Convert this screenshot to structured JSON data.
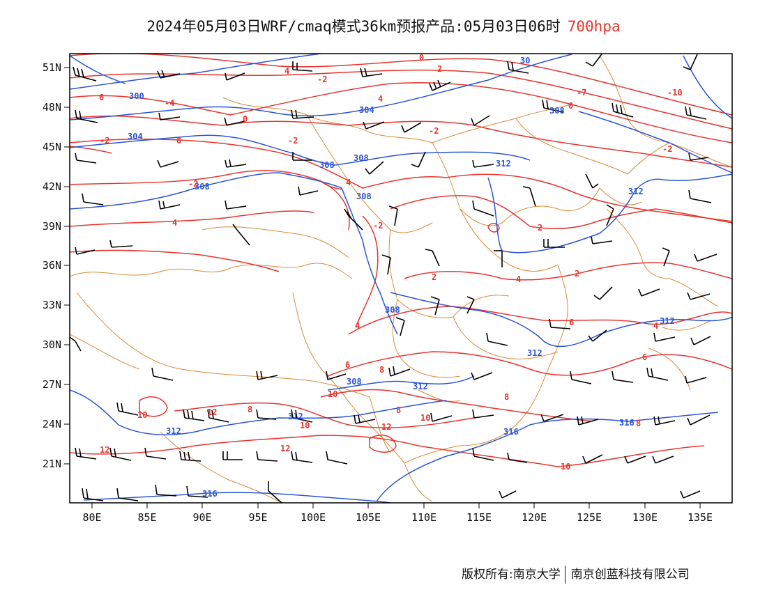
{
  "title": {
    "main": "2024年05月03日WRF/cmaq模式36km预报产品:05月03日06时",
    "level": "700hpa"
  },
  "axes": {
    "lat_labels": [
      "51N",
      "48N",
      "45N",
      "42N",
      "39N",
      "36N",
      "33N",
      "30N",
      "27N",
      "24N",
      "21N"
    ],
    "lon_labels": [
      "80E",
      "85E",
      "90E",
      "95E",
      "100E",
      "105E",
      "110E",
      "115E",
      "120E",
      "125E",
      "130E",
      "135E"
    ]
  },
  "map": {
    "contour_labels_temperature": [
      "0",
      "2",
      "-2",
      "4",
      "-4",
      "6",
      "-7",
      "-10",
      "8",
      "10",
      "12"
    ],
    "contour_labels_height": [
      "300",
      "304",
      "308",
      "312",
      "316"
    ]
  },
  "colors": {
    "temperature": "#e8342e",
    "height": "#2a54d8",
    "borders": "#d98a3a",
    "barbs": "#000000"
  },
  "footer": {
    "left": "版权所有:南京大学",
    "right": "南京创蓝科技有限公司"
  }
}
